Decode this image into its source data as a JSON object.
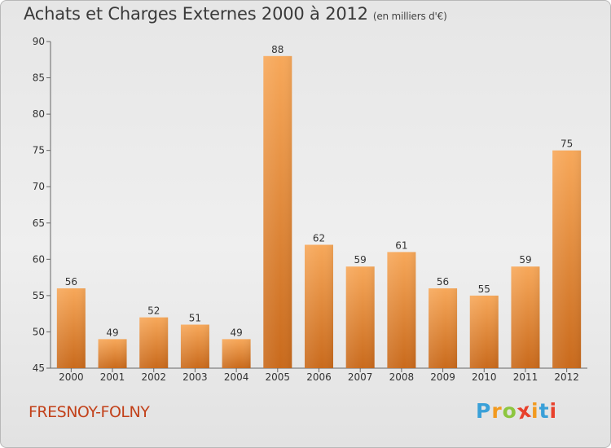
{
  "chart_data": {
    "type": "bar",
    "title": "Achats et Charges Externes 2000 à 2012",
    "subtitle": "(en milliers d'€)",
    "categories": [
      "2000",
      "2001",
      "2002",
      "2003",
      "2004",
      "2005",
      "2006",
      "2007",
      "2008",
      "2009",
      "2010",
      "2011",
      "2012"
    ],
    "values": [
      56,
      49,
      52,
      51,
      49,
      88,
      62,
      59,
      61,
      56,
      55,
      59,
      75
    ],
    "ylim": [
      45,
      90
    ],
    "yticks": [
      45,
      50,
      55,
      60,
      65,
      70,
      75,
      80,
      85,
      90
    ],
    "grid": false,
    "colors": {
      "bar_light": "#f7a85a",
      "bar_dark": "#c96a1c"
    }
  },
  "location": "FRESNOY-FOLNY",
  "brand": {
    "letters": [
      "P",
      "r",
      "o",
      "x",
      "i",
      "t",
      "i"
    ],
    "colors": [
      "#3aa0d8",
      "#f29a1f",
      "#8dc63f",
      "#e8412c",
      "#f29a1f",
      "#3aa0d8",
      "#e8412c"
    ]
  }
}
